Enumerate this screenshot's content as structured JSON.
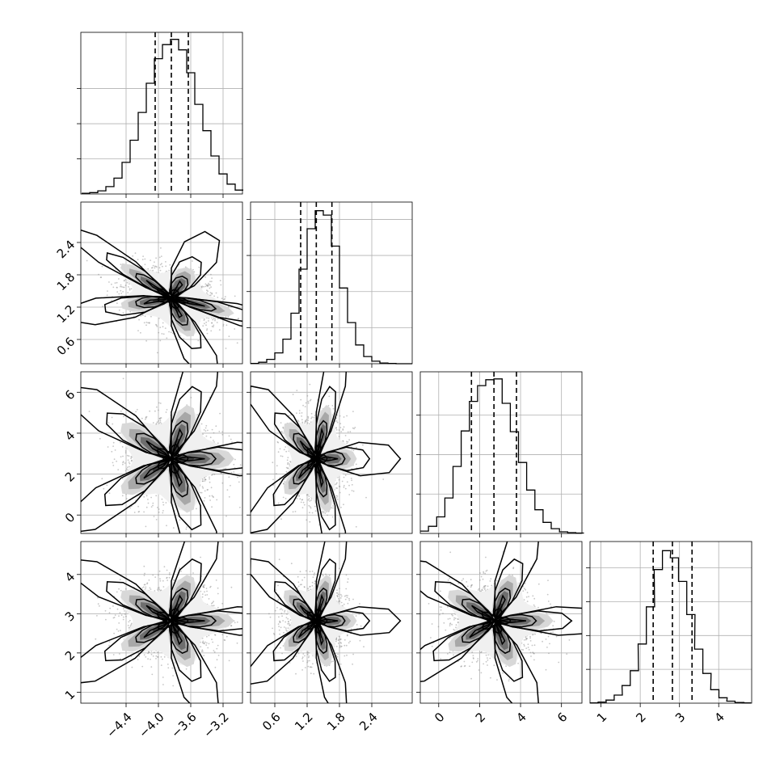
{
  "chart_data": {
    "type": "corner",
    "parameters": [
      "",
      "",
      "",
      ""
    ],
    "grid": true,
    "colors": {
      "axes": "#000000",
      "grid": "#b0b0b0",
      "scatter": "#808080",
      "contour": "#000000"
    },
    "ticks": [
      {
        "values": [
          -4.4,
          -4.0,
          -3.6,
          -3.2
        ],
        "labels": [
          "−4.4",
          "−4.0",
          "−3.6",
          "−3.2"
        ]
      },
      {
        "values": [
          0.6,
          1.2,
          1.8,
          2.4
        ],
        "labels": [
          "0.6",
          "1.2",
          "1.8",
          "2.4"
        ]
      },
      {
        "values": [
          0,
          2,
          4,
          6
        ],
        "labels": [
          "0",
          "2",
          "4",
          "6"
        ]
      },
      {
        "values": [
          1,
          2,
          3,
          4
        ],
        "labels": [
          "1",
          "2",
          "3",
          "4"
        ]
      }
    ],
    "ranges": [
      [
        -4.96,
        -2.96
      ],
      [
        0.15,
        3.15
      ],
      [
        -0.9,
        7.0
      ],
      [
        0.72,
        4.84
      ]
    ],
    "marginals": [
      {
        "param": 0,
        "quantiles": [
          -4.04,
          -3.84,
          -3.63
        ],
        "centers": [
          -4.9,
          -4.8,
          -4.7,
          -4.6,
          -4.5,
          -4.4,
          -4.3,
          -4.2,
          -4.1,
          -4.0,
          -3.9,
          -3.8,
          -3.7,
          -3.6,
          -3.5,
          -3.4,
          -3.3,
          -3.2,
          -3.1,
          -3.0
        ],
        "counts": [
          2,
          4,
          9,
          21,
          45,
          90,
          153,
          232,
          315,
          385,
          425,
          440,
          410,
          345,
          255,
          180,
          108,
          57,
          28,
          11
        ],
        "ymax": 460,
        "yticks": [
          100,
          200,
          300
        ]
      },
      {
        "param": 1,
        "quantiles": [
          1.08,
          1.37,
          1.66
        ],
        "centers": [
          0.225,
          0.375,
          0.525,
          0.675,
          0.825,
          0.975,
          1.125,
          1.275,
          1.425,
          1.575,
          1.725,
          1.875,
          2.025,
          2.175,
          2.325,
          2.475,
          2.625,
          2.775,
          2.925,
          3.075
        ],
        "counts": [
          1,
          4,
          12,
          30,
          68,
          140,
          262,
          374,
          424,
          412,
          326,
          210,
          114,
          52,
          20,
          7,
          2,
          1,
          0,
          0
        ],
        "ymax": 448,
        "yticks": [
          100,
          200,
          300,
          400
        ]
      },
      {
        "param": 2,
        "quantiles": [
          1.6,
          2.7,
          3.8
        ],
        "centers": [
          -0.7,
          -0.3,
          0.1,
          0.5,
          0.9,
          1.3,
          1.7,
          2.1,
          2.5,
          2.9,
          3.3,
          3.7,
          4.1,
          4.5,
          4.9,
          5.3,
          5.7,
          6.1,
          6.5,
          6.9
        ],
        "counts": [
          6,
          18,
          42,
          90,
          170,
          260,
          335,
          375,
          390,
          392,
          330,
          258,
          180,
          110,
          60,
          28,
          12,
          4,
          2,
          1
        ],
        "ymax": 410,
        "yticks": [
          100,
          200,
          300
        ]
      },
      {
        "param": 3,
        "quantiles": [
          2.33,
          2.82,
          3.32
        ],
        "centers": [
          0.82,
          1.03,
          1.23,
          1.44,
          1.64,
          1.85,
          2.05,
          2.26,
          2.46,
          2.67,
          2.87,
          3.08,
          3.29,
          3.49,
          3.7,
          3.9,
          4.11,
          4.31,
          4.52,
          4.72
        ],
        "counts": [
          1,
          3,
          9,
          24,
          52,
          96,
          175,
          285,
          395,
          451,
          430,
          360,
          262,
          160,
          88,
          40,
          16,
          6,
          2,
          1
        ],
        "ymax": 478,
        "yticks": [
          100,
          200,
          300,
          400
        ]
      }
    ],
    "joints": [
      {
        "x_param": 0,
        "y_param": 1,
        "mean": [
          -3.84,
          1.37
        ],
        "std": [
          0.3,
          0.29
        ],
        "rho": -0.38,
        "peak": [
          -3.85,
          1.35
        ]
      },
      {
        "x_param": 0,
        "y_param": 2,
        "mean": [
          -3.84,
          2.75
        ],
        "std": [
          0.3,
          1.1
        ],
        "rho": 0.0,
        "peak": [
          -3.88,
          2.75
        ]
      },
      {
        "x_param": 1,
        "y_param": 2,
        "mean": [
          1.37,
          2.75
        ],
        "std": [
          0.29,
          1.1
        ],
        "rho": 0.0,
        "peak": [
          1.38,
          2.75
        ]
      },
      {
        "x_param": 0,
        "y_param": 3,
        "mean": [
          -3.84,
          2.82
        ],
        "std": [
          0.3,
          0.49
        ],
        "rho": 0.0,
        "peak": [
          -3.8,
          2.9
        ]
      },
      {
        "x_param": 1,
        "y_param": 3,
        "mean": [
          1.37,
          2.82
        ],
        "std": [
          0.29,
          0.49
        ],
        "rho": 0.0,
        "peak": [
          1.4,
          2.8
        ]
      },
      {
        "x_param": 2,
        "y_param": 3,
        "mean": [
          2.75,
          2.82
        ],
        "std": [
          1.1,
          0.49
        ],
        "rho": 0.0,
        "peak": [
          2.9,
          2.78
        ]
      }
    ],
    "contour_levels_sigma": [
      0.5,
      1.0,
      1.5,
      2.0
    ]
  }
}
